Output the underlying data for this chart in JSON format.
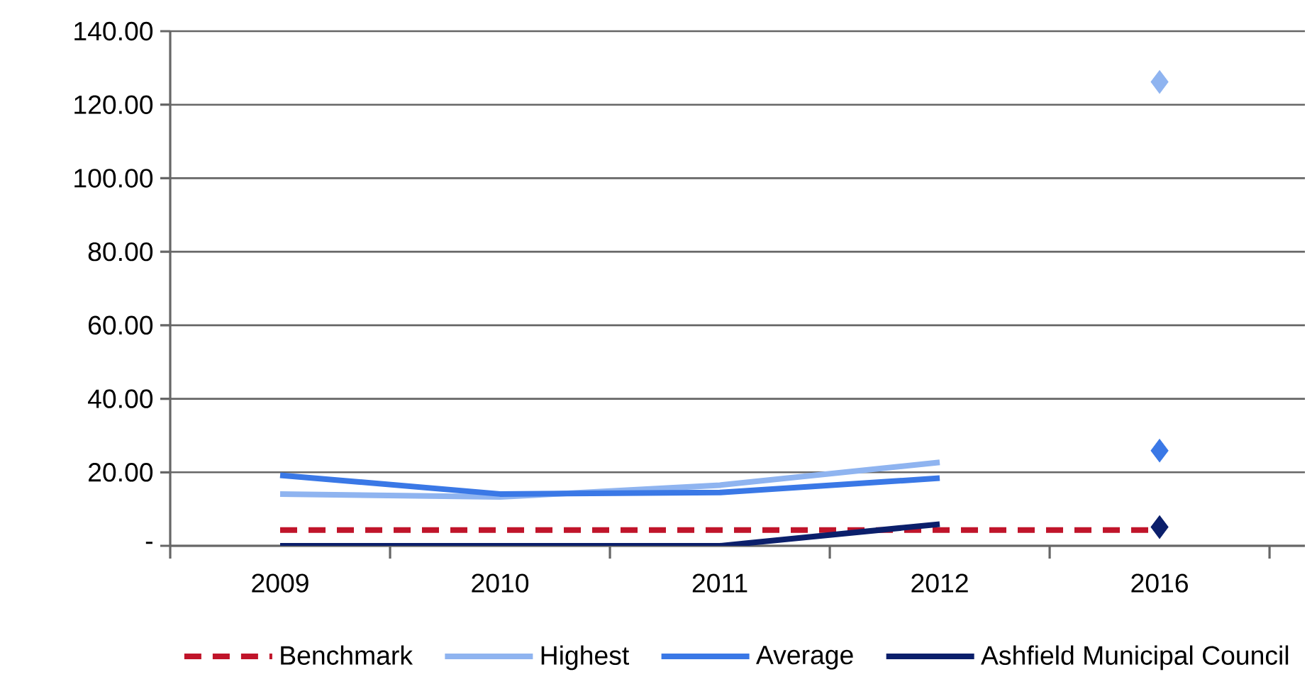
{
  "chart_data": {
    "type": "line",
    "categories": [
      "2009",
      "2010",
      "2011",
      "2012",
      "2016"
    ],
    "series": [
      {
        "name": "Benchmark",
        "color": "#c0142a",
        "line_style": "dashed",
        "values": [
          4.3,
          4.3,
          4.3,
          4.3,
          4.3
        ]
      },
      {
        "name": "Highest",
        "color": "#8fb4f0",
        "values": [
          14.1,
          13.3,
          16.5,
          22.7,
          null
        ]
      },
      {
        "name": "Average",
        "color": "#3a78e6",
        "values": [
          19.2,
          14.1,
          14.5,
          18.4,
          null
        ]
      },
      {
        "name": "Ashfield Municipal Council",
        "color": "#0b1f6b",
        "values": [
          0,
          0,
          0,
          5.9,
          null
        ]
      },
      {
        "type": "scatter",
        "marker": "diamond",
        "color": "#8fb4f0",
        "values": [
          null,
          null,
          null,
          null,
          126.2
        ]
      },
      {
        "type": "scatter",
        "marker": "diamond",
        "color": "#3a78e6",
        "values": [
          null,
          null,
          null,
          null,
          25.9
        ]
      },
      {
        "type": "scatter",
        "marker": "diamond",
        "color": "#0b1f6b",
        "values": [
          null,
          null,
          null,
          null,
          5.1
        ]
      }
    ],
    "ylim": [
      0,
      140
    ],
    "yticks": [
      {
        "value": 0,
        "label": "-"
      },
      {
        "value": 20,
        "label": "20.00"
      },
      {
        "value": 40,
        "label": "40.00"
      },
      {
        "value": 60,
        "label": "60.00"
      },
      {
        "value": 80,
        "label": "80.00"
      },
      {
        "value": 100,
        "label": "100.00"
      },
      {
        "value": 120,
        "label": "120.00"
      },
      {
        "value": 140,
        "label": "140.00"
      }
    ],
    "grid": "y",
    "legend": "bottom"
  }
}
